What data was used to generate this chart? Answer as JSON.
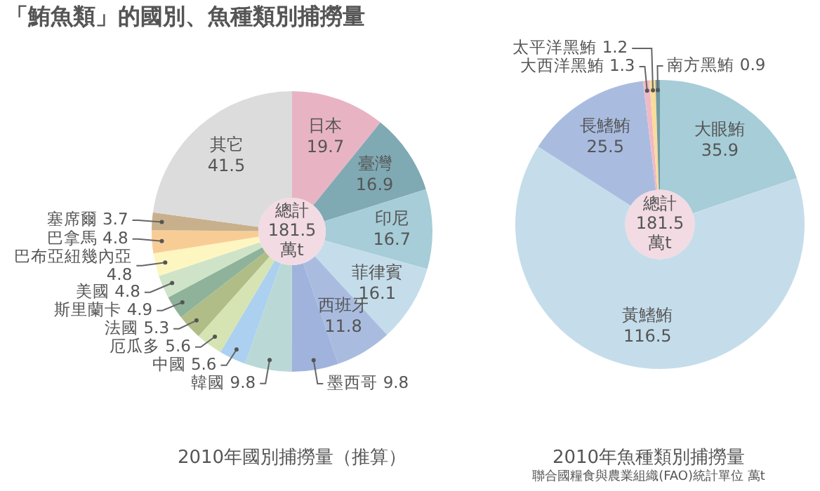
{
  "chart_data": [
    {
      "type": "donut",
      "title": "「鮪魚類」的國別、魚種類別捕撈量",
      "subtitle": "2010年國別捕撈量（推算）",
      "categories": [
        "日本",
        "臺灣",
        "印尼",
        "菲律賓",
        "西班牙",
        "墨西哥",
        "韓國",
        "中國",
        "厄瓜多",
        "法國",
        "斯里蘭卡",
        "美國",
        "巴布亞紐幾內亞",
        "巴拿馬",
        "塞席爾",
        "其它"
      ],
      "values": [
        19.7,
        16.9,
        16.7,
        16.1,
        11.8,
        9.8,
        9.8,
        5.6,
        5.6,
        5.3,
        4.9,
        4.8,
        4.8,
        4.8,
        3.7,
        41.5
      ],
      "colors": [
        "#e8b4c4",
        "#7fa9b3",
        "#a6cdd8",
        "#c5ddea",
        "#a9bce0",
        "#9fb3dc",
        "#bad9d6",
        "#acd0ef",
        "#d6e4b4",
        "#b0bd87",
        "#8fb39a",
        "#cfe3c8",
        "#fdf6c0",
        "#f8cd95",
        "#c9b08c",
        "#dcdcdc"
      ],
      "data_labels": true,
      "annotations": [
        "總計\n181.5\n萬t"
      ]
    },
    {
      "type": "donut",
      "title": "2010年魚種類別捕撈量",
      "categories": [
        "大眼鮪",
        "黃鰭鮪",
        "長鰭鮪",
        "大西洋黑鮪",
        "太平洋黑鮪",
        "南方黑鮪"
      ],
      "values": [
        35.9,
        116.5,
        25.5,
        1.3,
        1.2,
        0.9
      ],
      "colors": [
        "#a6cdd8",
        "#c5ddea",
        "#a9bce0",
        "#f0b9c6",
        "#f8dc9a",
        "#6f9aa2"
      ],
      "data_labels": true,
      "annotations": [
        "總計\n181.5\n萬t",
        "聯合國糧食與農業組織(FAO)統計單位 萬t"
      ]
    }
  ]
}
